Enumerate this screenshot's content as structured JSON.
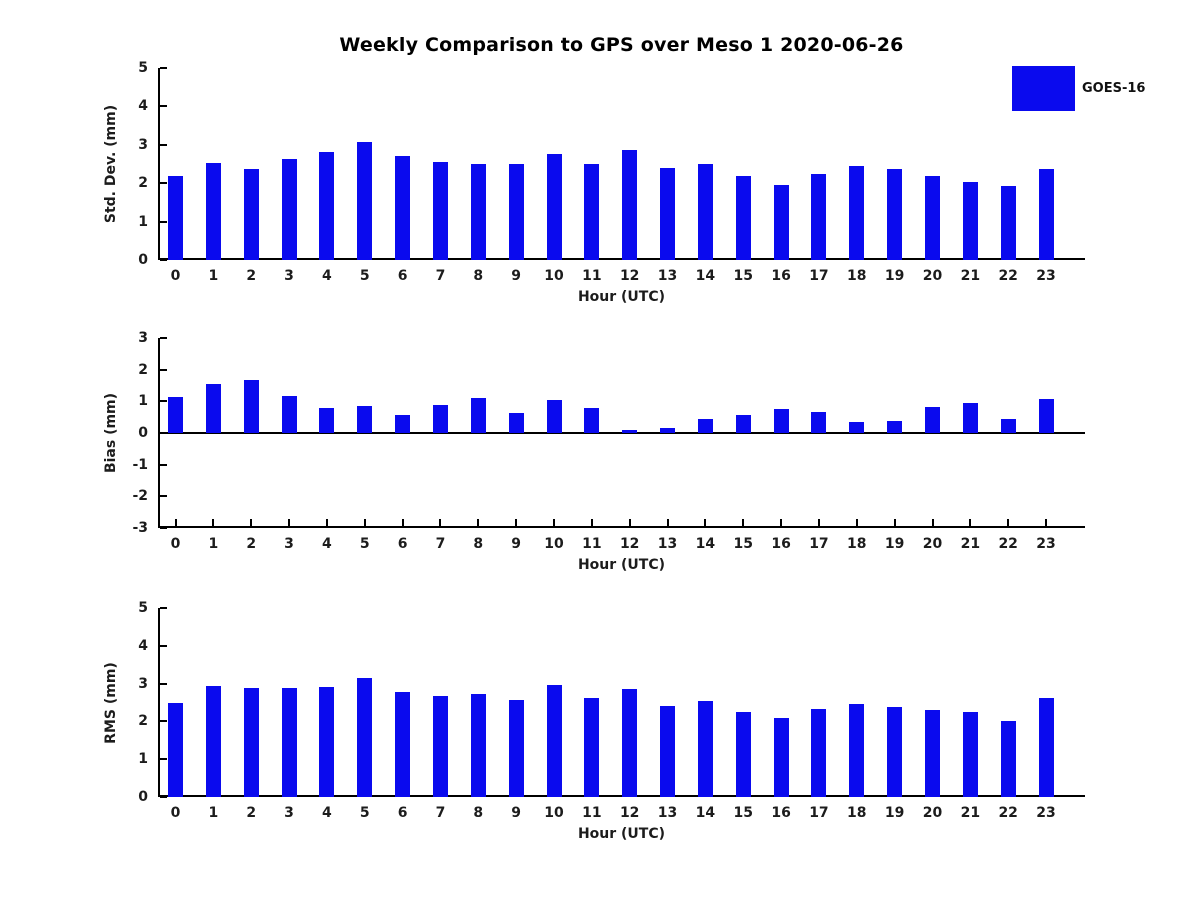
{
  "figure": {
    "title": "Weekly Comparison to GPS over Meso 1 2020-06-26",
    "legend": {
      "label": "GOES-16"
    }
  },
  "colors": {
    "bar": "#0a0aee",
    "axis": "#000000",
    "text": "#1c1c1c"
  },
  "chart_data": [
    {
      "type": "bar",
      "title": "",
      "ylabel": "Std. Dev. (mm)",
      "xlabel": "Hour (UTC)",
      "categories": [
        "0",
        "1",
        "2",
        "3",
        "4",
        "5",
        "6",
        "7",
        "8",
        "9",
        "10",
        "11",
        "12",
        "13",
        "14",
        "15",
        "16",
        "17",
        "18",
        "19",
        "20",
        "21",
        "22",
        "23"
      ],
      "series": [
        {
          "name": "GOES-16",
          "values": [
            2.2,
            2.53,
            2.38,
            2.64,
            2.8,
            3.06,
            2.72,
            2.54,
            2.5,
            2.5,
            2.77,
            2.51,
            2.87,
            2.4,
            2.5,
            2.19,
            1.95,
            2.25,
            2.45,
            2.36,
            2.18,
            2.02,
            1.94,
            2.37
          ]
        }
      ],
      "ylim": [
        0,
        5
      ],
      "yticks": [
        0,
        1,
        2,
        3,
        4,
        5
      ],
      "grid": false,
      "zero_line": false,
      "legend_position": "upper right outside"
    },
    {
      "type": "bar",
      "title": "",
      "ylabel": "Bias (mm)",
      "xlabel": "Hour (UTC)",
      "categories": [
        "0",
        "1",
        "2",
        "3",
        "4",
        "5",
        "6",
        "7",
        "8",
        "9",
        "10",
        "11",
        "12",
        "13",
        "14",
        "15",
        "16",
        "17",
        "18",
        "19",
        "20",
        "21",
        "22",
        "23"
      ],
      "series": [
        {
          "name": "GOES-16",
          "values": [
            1.15,
            1.55,
            1.66,
            1.16,
            0.8,
            0.84,
            0.56,
            0.89,
            1.1,
            0.62,
            1.05,
            0.8,
            0.1,
            0.15,
            0.44,
            0.58,
            0.76,
            0.66,
            0.36,
            0.37,
            0.82,
            0.95,
            0.45,
            1.06
          ]
        }
      ],
      "ylim": [
        -3,
        3
      ],
      "yticks": [
        -3,
        -2,
        -1,
        0,
        1,
        2,
        3
      ],
      "grid": false,
      "zero_line": true,
      "legend_position": "none"
    },
    {
      "type": "bar",
      "title": "",
      "ylabel": "RMS (mm)",
      "xlabel": "Hour (UTC)",
      "categories": [
        "0",
        "1",
        "2",
        "3",
        "4",
        "5",
        "6",
        "7",
        "8",
        "9",
        "10",
        "11",
        "12",
        "13",
        "14",
        "15",
        "16",
        "17",
        "18",
        "19",
        "20",
        "21",
        "22",
        "23"
      ],
      "series": [
        {
          "name": "GOES-16",
          "values": [
            2.48,
            2.93,
            2.88,
            2.88,
            2.92,
            3.16,
            2.78,
            2.68,
            2.72,
            2.57,
            2.95,
            2.62,
            2.86,
            2.42,
            2.55,
            2.26,
            2.1,
            2.33,
            2.46,
            2.39,
            2.29,
            2.24,
            2.0,
            2.61
          ]
        }
      ],
      "ylim": [
        0,
        5
      ],
      "yticks": [
        0,
        1,
        2,
        3,
        4,
        5
      ],
      "grid": false,
      "zero_line": false,
      "legend_position": "none"
    }
  ]
}
